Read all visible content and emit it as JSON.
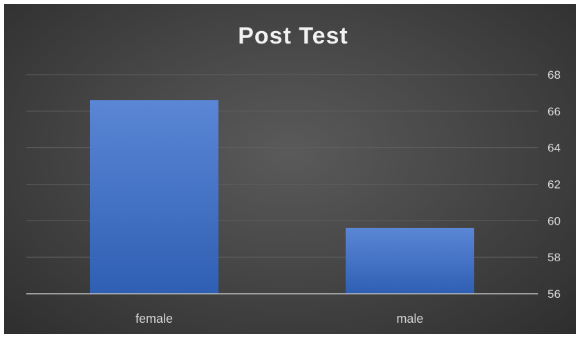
{
  "chart_data": {
    "type": "bar",
    "title": "Post Test",
    "categories": [
      "female",
      "male"
    ],
    "values": [
      66.6,
      59.6
    ],
    "ylim": [
      56,
      68
    ],
    "yticks": [
      56,
      58,
      60,
      62,
      64,
      66,
      68
    ],
    "grid": true,
    "y_axis_position": "right",
    "legend": "none",
    "colors": {
      "bar": "#4472c4",
      "bar_light": "#5b86d6",
      "bar_dark": "#2f5fb3",
      "gridline": "#5f5f5f",
      "baseline": "#bfbfbf"
    }
  }
}
